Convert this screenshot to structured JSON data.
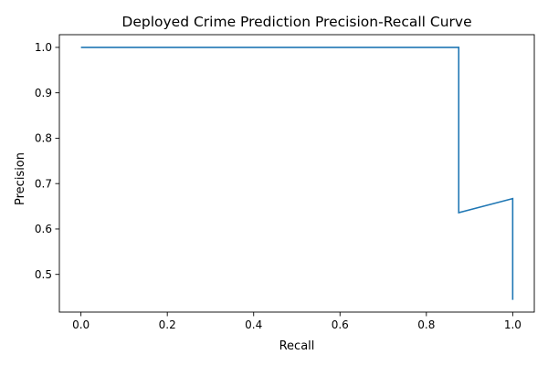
{
  "chart_data": {
    "type": "line",
    "title": "Deployed Crime Prediction Precision-Recall Curve",
    "xlabel": "Recall",
    "ylabel": "Precision",
    "xlim": [
      -0.05,
      1.05
    ],
    "ylim": [
      0.417,
      1.028
    ],
    "xticks": [
      0.0,
      0.2,
      0.4,
      0.6,
      0.8,
      1.0
    ],
    "xtick_labels": [
      "0.0",
      "0.2",
      "0.4",
      "0.6",
      "0.8",
      "1.0"
    ],
    "yticks": [
      0.5,
      0.6,
      0.7,
      0.8,
      0.9,
      1.0
    ],
    "ytick_labels": [
      "0.5",
      "0.6",
      "0.7",
      "0.8",
      "0.9",
      "1.0"
    ],
    "grid": false,
    "series": [
      {
        "color": "#1f77b4",
        "x": [
          0.0,
          0.875,
          0.875,
          1.0,
          1.0
        ],
        "y": [
          1.0,
          1.0,
          0.636,
          0.667,
          0.444
        ]
      }
    ]
  }
}
